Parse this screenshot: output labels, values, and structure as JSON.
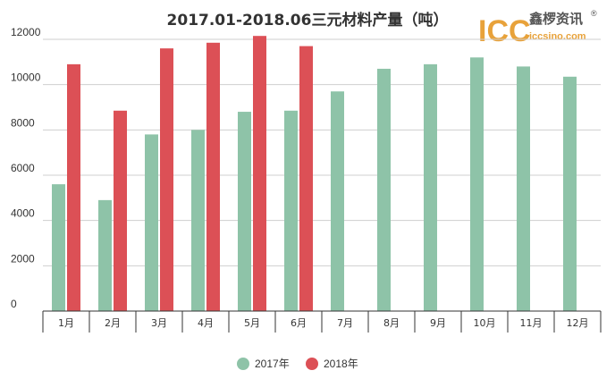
{
  "logo": {
    "mark": "ICC",
    "name_cn": "鑫椤资讯",
    "url": "iccsino.com",
    "registered": "®",
    "colors": {
      "mark": "#e8a23a",
      "name": "#555555"
    }
  },
  "chart_data": {
    "type": "bar",
    "title": "2017.01-2018.06三元材料产量（吨）",
    "categories": [
      "1月",
      "2月",
      "3月",
      "4月",
      "5月",
      "6月",
      "7月",
      "8月",
      "9月",
      "10月",
      "11月",
      "12月"
    ],
    "series": [
      {
        "name": "2017年",
        "color": "#8ec3a8",
        "values": [
          5600,
          4900,
          7800,
          8000,
          8800,
          8850,
          9700,
          10700,
          10900,
          11200,
          10800,
          10350
        ]
      },
      {
        "name": "2018年",
        "color": "#dc5056",
        "values": [
          10900,
          8850,
          11600,
          11850,
          12150,
          11700,
          null,
          null,
          null,
          null,
          null,
          null
        ]
      }
    ],
    "yticks": [
      0,
      2000,
      4000,
      6000,
      8000,
      10000,
      12000
    ],
    "ylim": [
      0,
      12000
    ],
    "grid": true,
    "legend_position": "bottom-center"
  }
}
